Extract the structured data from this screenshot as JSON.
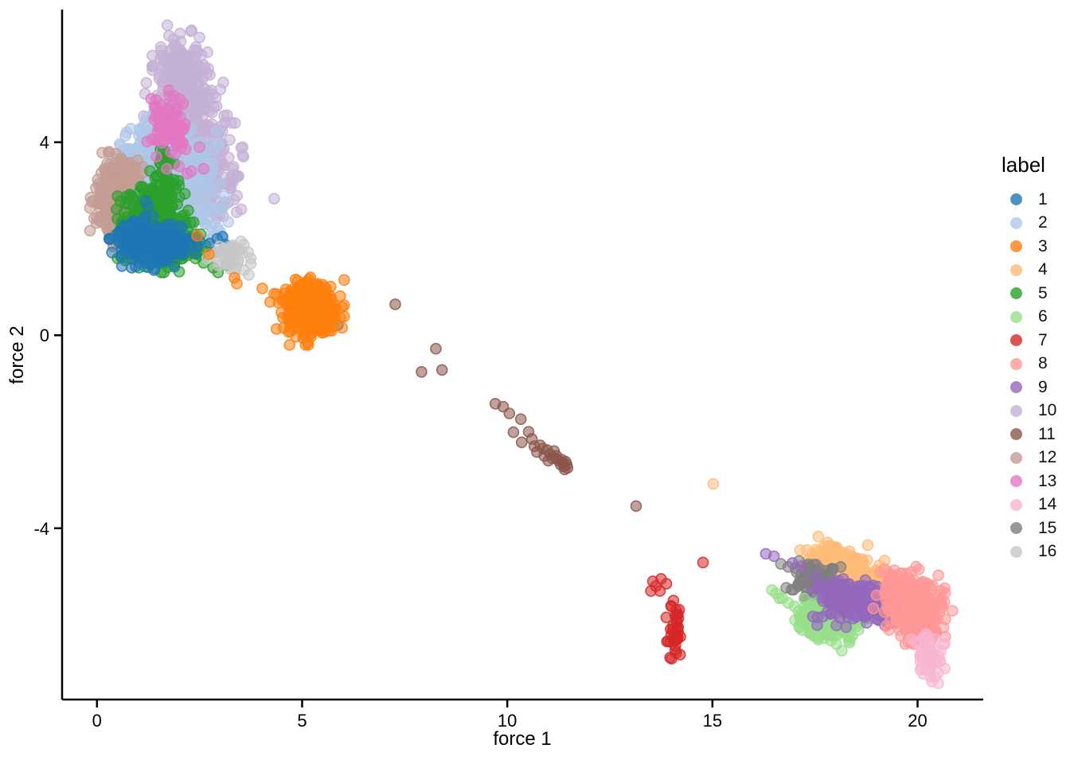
{
  "axes": {
    "x": {
      "label": "force 1",
      "ticks": [
        "0",
        "5",
        "10",
        "15",
        "20"
      ],
      "tick_values": [
        0,
        5,
        10,
        15,
        20
      ]
    },
    "y": {
      "label": "force 2",
      "ticks": [
        "-4",
        "0",
        "4"
      ],
      "tick_values": [
        -4,
        0,
        4
      ]
    }
  },
  "legend": {
    "title": "label",
    "items": [
      {
        "label": "1",
        "color": "#1f77b4"
      },
      {
        "label": "2",
        "color": "#aec7e8"
      },
      {
        "label": "3",
        "color": "#ff7f0e"
      },
      {
        "label": "4",
        "color": "#ffbb78"
      },
      {
        "label": "5",
        "color": "#2ca02c"
      },
      {
        "label": "6",
        "color": "#98df8a"
      },
      {
        "label": "7",
        "color": "#d62728"
      },
      {
        "label": "8",
        "color": "#ff9896"
      },
      {
        "label": "9",
        "color": "#9467bd"
      },
      {
        "label": "10",
        "color": "#c5b0d5"
      },
      {
        "label": "11",
        "color": "#8c564b"
      },
      {
        "label": "12",
        "color": "#c49c94"
      },
      {
        "label": "13",
        "color": "#e377c2"
      },
      {
        "label": "14",
        "color": "#f7b6d2"
      },
      {
        "label": "15",
        "color": "#7f7f7f"
      },
      {
        "label": "16",
        "color": "#c7c7c7"
      }
    ]
  },
  "chart_data": {
    "type": "scatter",
    "title": "",
    "xlabel": "force 1",
    "ylabel": "force 2",
    "xlim": [
      -0.85,
      21.6
    ],
    "ylim": [
      -7.55,
      6.75
    ],
    "grid": false,
    "legend_position": "right",
    "point_radius_px": 6.5,
    "point_fill_opacity": 0.55,
    "point_stroke_opacity": 0.85,
    "cluster_format": "[center_x, center_y, std_x, std_y, n_points] gaussian kernels in data coords; points = explicit [x,y] outliers",
    "series": [
      {
        "name": "10",
        "color": "#c5b0d5",
        "clusters": [
          [
            2.05,
            5.55,
            0.28,
            0.35,
            150
          ],
          [
            2.1,
            4.85,
            0.42,
            0.35,
            160
          ],
          [
            2.35,
            4.15,
            0.45,
            0.4,
            160
          ],
          [
            2.6,
            3.45,
            0.38,
            0.33,
            110
          ],
          [
            2.9,
            2.9,
            0.28,
            0.25,
            40
          ]
        ],
        "points": [
          [
            3.33,
            3.49
          ],
          [
            3.57,
            3.7
          ],
          [
            2.73,
            4.86
          ],
          [
            3.1,
            4.55
          ],
          [
            4.32,
            2.83
          ],
          [
            2.3,
            2.05
          ],
          [
            3.45,
            3.3
          ],
          [
            3.2,
            2.75
          ]
        ]
      },
      {
        "name": "2",
        "color": "#aec7e8",
        "clusters": [
          [
            1.45,
            3.85,
            0.35,
            0.4,
            170
          ],
          [
            1.55,
            3.35,
            0.5,
            0.35,
            190
          ],
          [
            1.0,
            3.3,
            0.25,
            0.3,
            70
          ],
          [
            2.1,
            3.0,
            0.4,
            0.3,
            80
          ],
          [
            2.35,
            3.7,
            0.25,
            0.3,
            50
          ],
          [
            2.5,
            2.4,
            0.28,
            0.33,
            40
          ]
        ],
        "points": [
          [
            3.36,
            1.76
          ],
          [
            3.0,
            2.15
          ],
          [
            3.2,
            2.35
          ],
          [
            2.9,
            2.6
          ],
          [
            3.39,
            1.73
          ]
        ]
      },
      {
        "name": "12",
        "color": "#c49c94",
        "clusters": [
          [
            0.38,
            2.85,
            0.22,
            0.38,
            170
          ],
          [
            0.55,
            2.3,
            0.18,
            0.2,
            50
          ],
          [
            0.72,
            3.3,
            0.16,
            0.16,
            30
          ]
        ],
        "points": []
      },
      {
        "name": "5",
        "color": "#2ca02c",
        "clusters": [
          [
            1.35,
            2.45,
            0.35,
            0.35,
            210
          ],
          [
            1.0,
            2.1,
            0.25,
            0.28,
            80
          ],
          [
            1.7,
            2.0,
            0.33,
            0.28,
            110
          ],
          [
            2.2,
            1.75,
            0.28,
            0.18,
            45
          ],
          [
            1.65,
            3.0,
            0.18,
            0.22,
            35
          ],
          [
            1.63,
            3.68,
            0.1,
            0.12,
            12
          ]
        ],
        "points": [
          [
            2.83,
            1.4
          ],
          [
            3.16,
            1.45
          ],
          [
            2.95,
            1.3
          ],
          [
            2.6,
            1.5
          ],
          [
            1.55,
            3.85
          ]
        ]
      },
      {
        "name": "1",
        "color": "#1f77b4",
        "clusters": [
          [
            1.05,
            1.95,
            0.3,
            0.22,
            150
          ],
          [
            1.5,
            1.85,
            0.3,
            0.2,
            100
          ],
          [
            1.95,
            1.9,
            0.22,
            0.16,
            40
          ]
        ],
        "points": [
          [
            2.29,
            2.0
          ],
          [
            2.5,
            1.95
          ],
          [
            2.75,
            1.9
          ],
          [
            2.93,
            2.0
          ],
          [
            3.06,
            2.04
          ],
          [
            3.12,
            1.88
          ],
          [
            2.4,
            1.7
          ],
          [
            5.87,
            0.21
          ],
          [
            1.18,
            2.78
          ],
          [
            1.25,
            2.68
          ]
        ]
      },
      {
        "name": "13",
        "color": "#e377c2",
        "clusters": [
          [
            1.7,
            4.45,
            0.22,
            0.25,
            60
          ],
          [
            1.92,
            4.12,
            0.18,
            0.18,
            28
          ]
        ],
        "points": [
          [
            1.45,
            3.7
          ],
          [
            2.0,
            3.5
          ],
          [
            2.3,
            3.4
          ],
          [
            2.6,
            3.45
          ],
          [
            2.2,
            3.35
          ],
          [
            2.5,
            3.9
          ],
          [
            1.32,
            4.9
          ],
          [
            2.1,
            4.8
          ],
          [
            1.7,
            3.45
          ]
        ]
      },
      {
        "name": "16",
        "color": "#c7c7c7",
        "clusters": [
          [
            3.2,
            1.62,
            0.22,
            0.15,
            40
          ]
        ],
        "points": [
          [
            3.7,
            1.25
          ],
          [
            3.58,
            1.35
          ],
          [
            3.75,
            1.48
          ],
          [
            3.35,
            1.3
          ]
        ]
      },
      {
        "name": "3",
        "color": "#ff7f0e",
        "clusters": [
          [
            5.2,
            0.5,
            0.33,
            0.28,
            330
          ],
          [
            4.85,
            0.82,
            0.14,
            0.1,
            18
          ]
        ],
        "points": [
          [
            4.03,
            0.97
          ],
          [
            4.32,
            0.86
          ],
          [
            4.51,
            0.72
          ],
          [
            4.22,
            0.69
          ],
          [
            4.6,
            0.95
          ],
          [
            3.41,
            1.07
          ],
          [
            3.35,
            1.19
          ],
          [
            2.44,
            2.06
          ],
          [
            2.73,
            1.68
          ]
        ]
      },
      {
        "name": "11",
        "color": "#8c564b",
        "clusters": [],
        "points": [
          [
            7.27,
            0.64
          ],
          [
            8.26,
            -0.28
          ],
          [
            7.91,
            -0.76
          ],
          [
            8.41,
            -0.72
          ],
          [
            13.14,
            -3.54
          ],
          [
            9.71,
            -1.42
          ],
          [
            9.9,
            -1.48
          ],
          [
            10.05,
            -1.62
          ],
          [
            10.33,
            -1.74
          ],
          [
            10.15,
            -2.01
          ],
          [
            10.52,
            -2.0
          ],
          [
            10.35,
            -2.22
          ],
          [
            10.6,
            -2.15
          ],
          [
            10.66,
            -2.3
          ],
          [
            10.72,
            -2.42
          ],
          [
            10.8,
            -2.28
          ],
          [
            10.87,
            -2.35
          ],
          [
            10.97,
            -2.38
          ],
          [
            11.05,
            -2.47
          ],
          [
            11.14,
            -2.4
          ],
          [
            11.18,
            -2.55
          ],
          [
            11.25,
            -2.6
          ],
          [
            11.33,
            -2.58
          ],
          [
            11.36,
            -2.65
          ],
          [
            11.42,
            -2.62
          ],
          [
            11.3,
            -2.68
          ],
          [
            11.38,
            -2.72
          ],
          [
            11.45,
            -2.68
          ],
          [
            11.2,
            -2.5
          ],
          [
            11.1,
            -2.55
          ],
          [
            10.9,
            -2.5
          ],
          [
            11.0,
            -2.6
          ],
          [
            11.47,
            -2.75
          ],
          [
            11.4,
            -2.78
          ]
        ]
      },
      {
        "name": "4",
        "color": "#ffbb78",
        "clusters": [
          [
            17.75,
            -4.6,
            0.28,
            0.18,
            60
          ],
          [
            18.4,
            -4.9,
            0.35,
            0.22,
            70
          ],
          [
            19.0,
            -5.1,
            0.2,
            0.15,
            25
          ]
        ],
        "points": [
          [
            15.02,
            -3.08
          ],
          [
            17.3,
            -4.45
          ],
          [
            19.3,
            -5.25
          ]
        ]
      },
      {
        "name": "15",
        "color": "#7f7f7f",
        "clusters": [
          [
            17.55,
            -5.05,
            0.3,
            0.2,
            70
          ],
          [
            18.05,
            -5.35,
            0.25,
            0.15,
            45
          ]
        ],
        "points": [
          [
            16.67,
            -4.74
          ],
          [
            16.85,
            -4.8
          ]
        ]
      },
      {
        "name": "6",
        "color": "#98df8a",
        "clusters": [
          [
            17.85,
            -6.0,
            0.35,
            0.22,
            110
          ],
          [
            18.5,
            -5.9,
            0.18,
            0.14,
            25
          ],
          [
            17.4,
            -5.8,
            0.2,
            0.15,
            35
          ]
        ],
        "points": [
          [
            16.45,
            -5.28
          ],
          [
            16.55,
            -5.35
          ],
          [
            16.7,
            -5.45
          ],
          [
            16.85,
            -5.55
          ],
          [
            17.0,
            -5.62
          ],
          [
            17.1,
            -5.72
          ],
          [
            16.63,
            -5.45
          ]
        ]
      },
      {
        "name": "9",
        "color": "#9467bd",
        "clusters": [
          [
            18.45,
            -5.55,
            0.4,
            0.2,
            150
          ],
          [
            19.3,
            -5.6,
            0.25,
            0.2,
            60
          ],
          [
            17.95,
            -5.35,
            0.2,
            0.15,
            35
          ]
        ],
        "points": [
          [
            16.3,
            -4.53
          ],
          [
            16.5,
            -4.58
          ],
          [
            17.15,
            -4.79
          ],
          [
            16.95,
            -4.72
          ],
          [
            17.5,
            -5.0
          ]
        ]
      },
      {
        "name": "8",
        "color": "#ff9896",
        "clusters": [
          [
            19.8,
            -5.5,
            0.35,
            0.3,
            150
          ],
          [
            20.3,
            -5.85,
            0.22,
            0.3,
            60
          ],
          [
            19.5,
            -5.2,
            0.2,
            0.15,
            40
          ],
          [
            20.05,
            -6.2,
            0.18,
            0.18,
            25
          ]
        ],
        "points": [
          [
            19.7,
            -6.4
          ]
        ]
      },
      {
        "name": "14",
        "color": "#f7b6d2",
        "clusters": [
          [
            20.3,
            -6.65,
            0.18,
            0.25,
            55
          ]
        ],
        "points": [
          [
            19.85,
            -6.3
          ],
          [
            20.1,
            -6.5
          ],
          [
            20.5,
            -7.0
          ],
          [
            20.32,
            -7.08
          ],
          [
            20.55,
            -6.75
          ]
        ]
      },
      {
        "name": "7",
        "color": "#d62728",
        "clusters": [
          [
            14.1,
            -6.1,
            0.09,
            0.32,
            34
          ]
        ],
        "points": [
          [
            13.55,
            -5.1
          ],
          [
            13.75,
            -5.05
          ],
          [
            13.5,
            -5.3
          ],
          [
            13.72,
            -5.3
          ],
          [
            13.62,
            -5.2
          ],
          [
            13.88,
            -5.15
          ],
          [
            14.77,
            -4.71
          ],
          [
            14.05,
            -5.5
          ],
          [
            14.0,
            -5.62
          ],
          [
            14.12,
            -5.7
          ]
        ]
      }
    ]
  }
}
